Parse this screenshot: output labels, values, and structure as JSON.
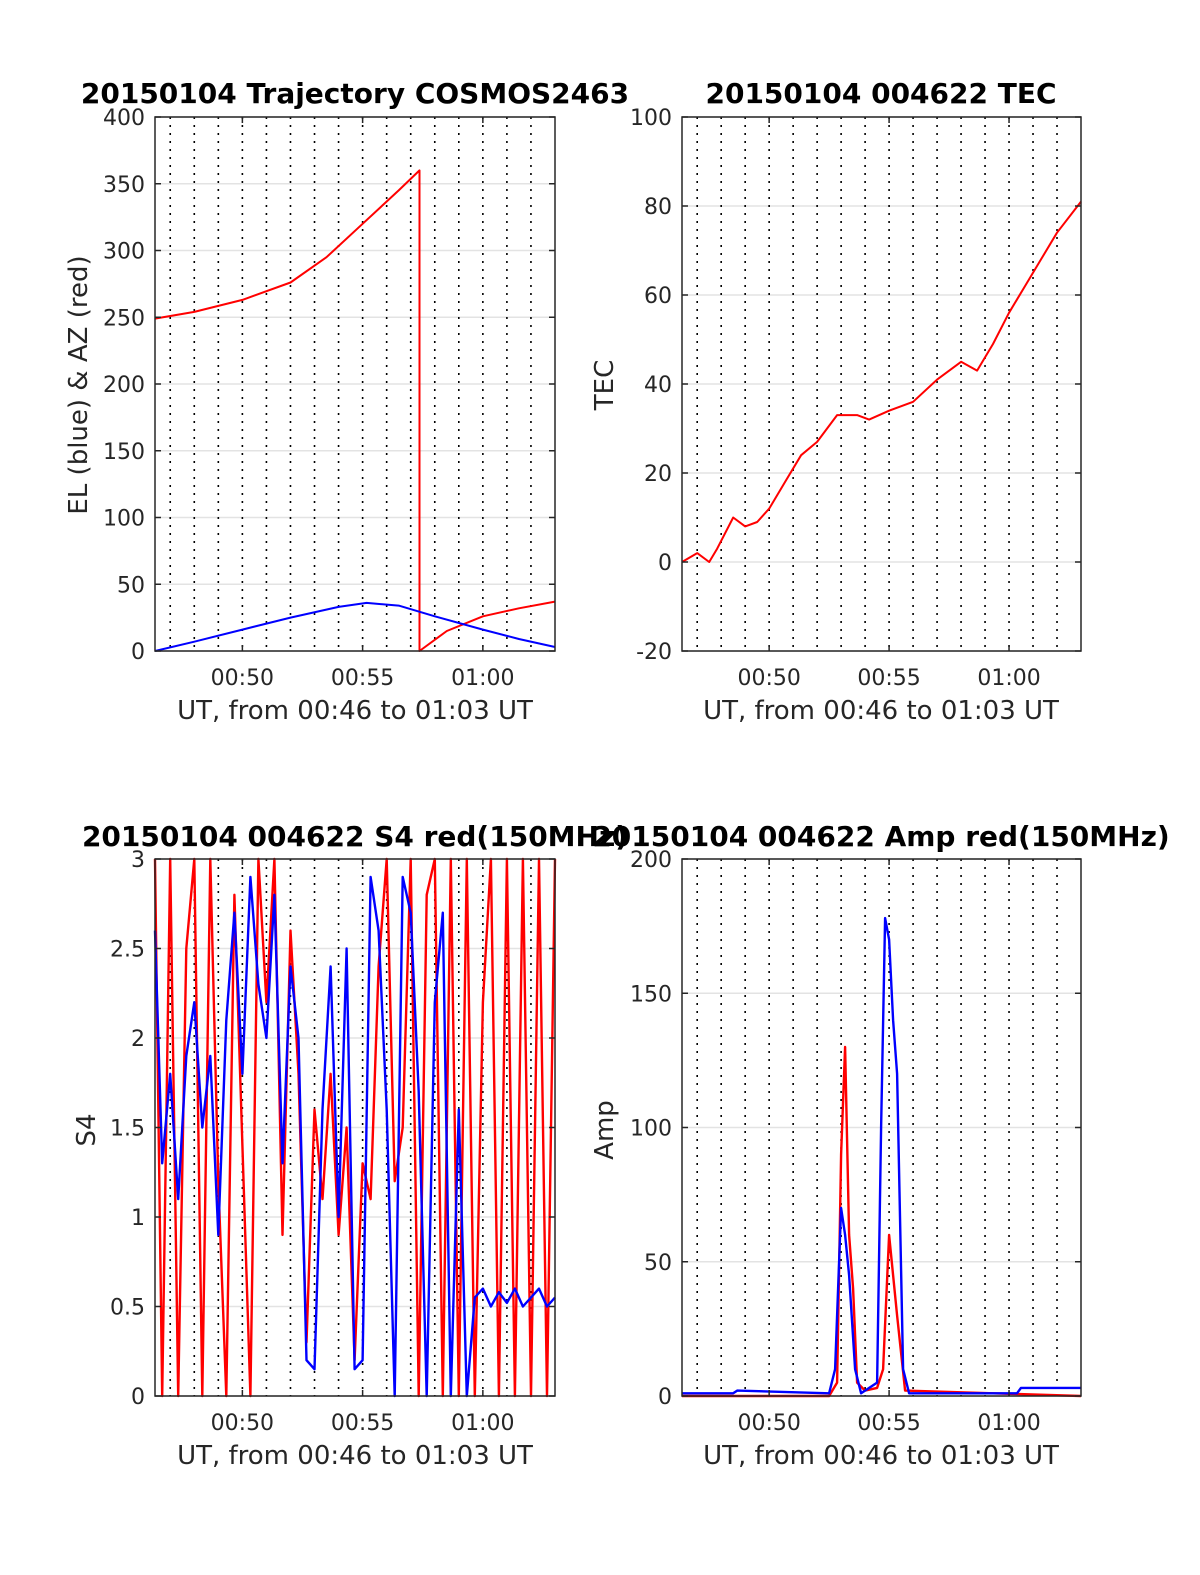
{
  "chart_data": [
    {
      "type": "line",
      "title": "20150104 Trajectory COSMOS2463",
      "xlabel": "UT, from 00:46 to 01:03 UT",
      "ylabel": "EL (blue) & AZ (red)",
      "xlim": [
        "00:46:22",
        "01:03:00"
      ],
      "xticks": [
        "00:50",
        "00:55",
        "01:00"
      ],
      "ylim": [
        0,
        400
      ],
      "yticks": [
        "0",
        "50",
        "100",
        "150",
        "200",
        "250",
        "300",
        "350",
        "400"
      ],
      "grid": true,
      "series": [
        {
          "color": "#ff0000",
          "x": [
            "00:46:22",
            "00:48:00",
            "00:50:00",
            "00:52:00",
            "00:53:30",
            "00:55:00",
            "00:56:30",
            "00:57:22",
            "00:57:22",
            "00:58:30",
            "01:00:00",
            "01:01:30",
            "01:03:00"
          ],
          "values": [
            249,
            254,
            263,
            276,
            295,
            320,
            345,
            360,
            0,
            15,
            26,
            32,
            37
          ]
        },
        {
          "color": "#0000ff",
          "x": [
            "00:46:22",
            "00:48:00",
            "00:50:00",
            "00:52:00",
            "00:54:00",
            "00:55:10",
            "00:56:30",
            "00:58:00",
            "01:00:00",
            "01:01:30",
            "01:03:00"
          ],
          "values": [
            0,
            7,
            16,
            25,
            33,
            36,
            34,
            26,
            16,
            9,
            3
          ]
        }
      ]
    },
    {
      "type": "line",
      "title": "20150104 004622 TEC",
      "xlabel": "UT, from 00:46 to 01:03 UT",
      "ylabel": "TEC",
      "xlim": [
        "00:46:22",
        "01:03:00"
      ],
      "xticks": [
        "00:50",
        "00:55",
        "01:00"
      ],
      "ylim": [
        -20,
        100
      ],
      "yticks": [
        "-20",
        "0",
        "20",
        "40",
        "60",
        "80",
        "100"
      ],
      "grid": true,
      "series": [
        {
          "color": "#ff0000",
          "x": [
            "00:46:22",
            "00:47:00",
            "00:47:30",
            "00:47:50",
            "00:48:30",
            "00:49:00",
            "00:49:30",
            "00:50:00",
            "00:50:40",
            "00:51:20",
            "00:52:00",
            "00:52:50",
            "00:53:40",
            "00:54:10",
            "00:55:00",
            "00:56:00",
            "00:57:00",
            "00:58:00",
            "00:58:40",
            "00:59:20",
            "01:00:00",
            "01:00:40",
            "01:01:20",
            "01:02:00",
            "01:03:00"
          ],
          "values": [
            0,
            2,
            0,
            3,
            10,
            8,
            9,
            12,
            18,
            24,
            27,
            33,
            33,
            32,
            34,
            36,
            41,
            45,
            43,
            49,
            56,
            62,
            68,
            74,
            81
          ]
        }
      ]
    },
    {
      "type": "line",
      "title": "20150104 004622 S4 red(150MHz)",
      "xlabel": "UT, from 00:46 to 01:03 UT",
      "ylabel": "S4",
      "xlim": [
        "00:46:22",
        "01:03:00"
      ],
      "xticks": [
        "00:50",
        "00:55",
        "01:00"
      ],
      "ylim": [
        0,
        3
      ],
      "yticks": [
        "0",
        "0.5",
        "1",
        "1.5",
        "2",
        "2.5",
        "3"
      ],
      "grid": true,
      "series": [
        {
          "color": "#ff0000",
          "x": [
            "00:46:22",
            "00:46:40",
            "00:47:00",
            "00:47:20",
            "00:47:40",
            "00:48:00",
            "00:48:20",
            "00:48:40",
            "00:49:00",
            "00:49:20",
            "00:49:40",
            "00:50:00",
            "00:50:20",
            "00:50:40",
            "00:51:00",
            "00:51:20",
            "00:51:40",
            "00:52:00",
            "00:52:20",
            "00:52:40",
            "00:53:00",
            "00:53:20",
            "00:53:40",
            "00:54:00",
            "00:54:20",
            "00:54:40",
            "00:55:00",
            "00:55:20",
            "00:55:40",
            "00:56:00",
            "00:56:20",
            "00:56:40",
            "00:57:00",
            "00:57:20",
            "00:57:40",
            "00:58:00",
            "00:58:20",
            "00:58:40",
            "00:59:00",
            "00:59:20",
            "00:59:40",
            "01:00:00",
            "01:00:20",
            "01:00:40",
            "01:01:00",
            "01:01:20",
            "01:01:40",
            "01:02:00",
            "01:02:20",
            "01:02:40",
            "01:03:00"
          ],
          "values": [
            3,
            0,
            3,
            0,
            2.5,
            3,
            0,
            3,
            1.2,
            0,
            2.8,
            1.4,
            0,
            3,
            2.2,
            3,
            0.9,
            2.6,
            1.8,
            0.3,
            1.6,
            1.1,
            1.8,
            0.9,
            1.5,
            0.2,
            1.3,
            1.1,
            2.4,
            3,
            1.2,
            1.5,
            3,
            0,
            2.8,
            3,
            0,
            3,
            0,
            3,
            0,
            2.2,
            3,
            0,
            3,
            0,
            3,
            0,
            3,
            0,
            3
          ]
        },
        {
          "color": "#0000ff",
          "x": [
            "00:46:22",
            "00:46:40",
            "00:47:00",
            "00:47:20",
            "00:47:40",
            "00:48:00",
            "00:48:20",
            "00:48:40",
            "00:49:00",
            "00:49:20",
            "00:49:40",
            "00:50:00",
            "00:50:20",
            "00:50:40",
            "00:51:00",
            "00:51:20",
            "00:51:40",
            "00:52:00",
            "00:52:20",
            "00:52:40",
            "00:53:00",
            "00:53:20",
            "00:53:40",
            "00:54:00",
            "00:54:20",
            "00:54:40",
            "00:55:00",
            "00:55:20",
            "00:55:40",
            "00:56:00",
            "00:56:20",
            "00:56:40",
            "00:57:00",
            "00:57:20",
            "00:57:40",
            "00:58:00",
            "00:58:20",
            "00:58:40",
            "00:59:00",
            "00:59:20",
            "00:59:40",
            "01:00:00",
            "01:00:20",
            "01:00:40",
            "01:01:00",
            "01:01:20",
            "01:01:40",
            "01:02:00",
            "01:02:20",
            "01:02:40",
            "01:03:00"
          ],
          "values": [
            2.6,
            1.3,
            1.8,
            1.1,
            1.9,
            2.2,
            1.5,
            1.9,
            0.9,
            2.1,
            2.7,
            1.8,
            2.9,
            2.3,
            2.0,
            2.8,
            1.3,
            2.4,
            2.0,
            0.2,
            0.15,
            1.6,
            2.4,
            1.0,
            2.5,
            0.15,
            0.2,
            2.9,
            2.6,
            1.6,
            0,
            2.9,
            2.7,
            1.7,
            0,
            2.2,
            2.7,
            0,
            1.6,
            0,
            0.55,
            0.6,
            0.5,
            0.58,
            0.52,
            0.6,
            0.5,
            0.55,
            0.6,
            0.5,
            0.55
          ]
        }
      ]
    },
    {
      "type": "line",
      "title": "20150104 004622 Amp red(150MHz)",
      "xlabel": "UT, from 00:46 to 01:03 UT",
      "ylabel": "Amp",
      "xlim": [
        "00:46:22",
        "01:03:00"
      ],
      "xticks": [
        "00:50",
        "00:55",
        "01:00"
      ],
      "ylim": [
        0,
        200
      ],
      "yticks": [
        "0",
        "50",
        "100",
        "150",
        "200"
      ],
      "grid": true,
      "series": [
        {
          "color": "#ff0000",
          "x": [
            "00:46:22",
            "00:52:30",
            "00:52:50",
            "00:53:00",
            "00:53:10",
            "00:53:20",
            "00:53:30",
            "00:53:40",
            "00:54:00",
            "00:54:30",
            "00:54:45",
            "00:55:00",
            "00:55:10",
            "00:55:20",
            "00:55:40",
            "01:03:00"
          ],
          "values": [
            0,
            0,
            5,
            90,
            130,
            60,
            40,
            5,
            2,
            3,
            10,
            60,
            45,
            30,
            2,
            0
          ]
        },
        {
          "color": "#0000ff",
          "x": [
            "00:46:22",
            "00:48:30",
            "00:48:40",
            "00:52:30",
            "00:52:45",
            "00:53:00",
            "00:53:10",
            "00:53:20",
            "00:53:35",
            "00:53:50",
            "00:54:30",
            "00:54:40",
            "00:54:50",
            "00:55:00",
            "00:55:10",
            "00:55:20",
            "00:55:35",
            "00:55:50",
            "01:00:20",
            "01:00:30",
            "01:03:00"
          ],
          "values": [
            1,
            1,
            2,
            1,
            10,
            70,
            60,
            45,
            10,
            1,
            5,
            100,
            178,
            170,
            140,
            120,
            10,
            1,
            1,
            3,
            3
          ]
        }
      ]
    }
  ]
}
